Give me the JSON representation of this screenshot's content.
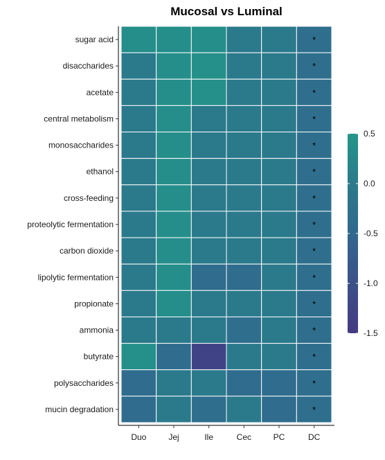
{
  "chart_data": {
    "type": "heatmap",
    "title": "Mucosal vs Luminal",
    "xlabel": "",
    "ylabel": "",
    "x_categories": [
      "Duo",
      "Jej",
      "Ile",
      "Cec",
      "PC",
      "DC"
    ],
    "y_categories": [
      "sugar acid",
      "disaccharides",
      "acetate",
      "central metabolism",
      "monosaccharides",
      "ethanol",
      "cross-feeding",
      "proteolytic fermentation",
      "carbon dioxide",
      "lipolytic fermentation",
      "propionate",
      "ammonia",
      "butyrate",
      "polysaccharides",
      "mucin degradation"
    ],
    "values": [
      [
        0.35,
        0.35,
        0.35,
        0.0,
        0.0,
        -0.3
      ],
      [
        0.0,
        0.35,
        0.4,
        0.0,
        0.0,
        -0.3
      ],
      [
        0.0,
        0.35,
        0.4,
        0.0,
        0.0,
        -0.3
      ],
      [
        0.0,
        0.35,
        0.0,
        0.0,
        0.0,
        -0.3
      ],
      [
        0.0,
        0.35,
        0.0,
        0.0,
        0.0,
        -0.3
      ],
      [
        0.0,
        0.35,
        0.0,
        0.0,
        0.0,
        -0.3
      ],
      [
        0.0,
        0.35,
        0.0,
        0.0,
        0.0,
        -0.3
      ],
      [
        0.0,
        0.35,
        0.0,
        0.0,
        0.0,
        -0.3
      ],
      [
        0.0,
        0.35,
        0.0,
        0.0,
        0.0,
        -0.3
      ],
      [
        0.0,
        0.35,
        -0.4,
        -0.4,
        0.0,
        -0.3
      ],
      [
        0.0,
        0.35,
        0.0,
        0.0,
        0.0,
        -0.3
      ],
      [
        0.0,
        0.0,
        0.0,
        -0.3,
        0.0,
        -0.3
      ],
      [
        0.4,
        -0.4,
        -1.3,
        0.0,
        0.0,
        -0.3
      ],
      [
        -0.4,
        0.0,
        0.0,
        -0.4,
        -0.4,
        -0.3
      ],
      [
        -0.4,
        0.0,
        -0.3,
        0.0,
        -0.4,
        -0.3
      ]
    ],
    "significant_column": "DC",
    "significance_marker": "*",
    "color_scale": {
      "min": -1.5,
      "max": 0.5,
      "ticks": [
        0.5,
        0.0,
        -0.5,
        -1.0,
        -1.5
      ],
      "tick_labels": [
        "0.5",
        "0.0",
        "-0.5",
        "-1.0",
        "-1.5"
      ],
      "stops": [
        {
          "value": -1.5,
          "color": "#443a83"
        },
        {
          "value": -0.5,
          "color": "#31688e"
        },
        {
          "value": 0.0,
          "color": "#2b7a8c"
        },
        {
          "value": 0.5,
          "color": "#23968a"
        }
      ]
    },
    "legend_position": "right",
    "grid": false
  }
}
